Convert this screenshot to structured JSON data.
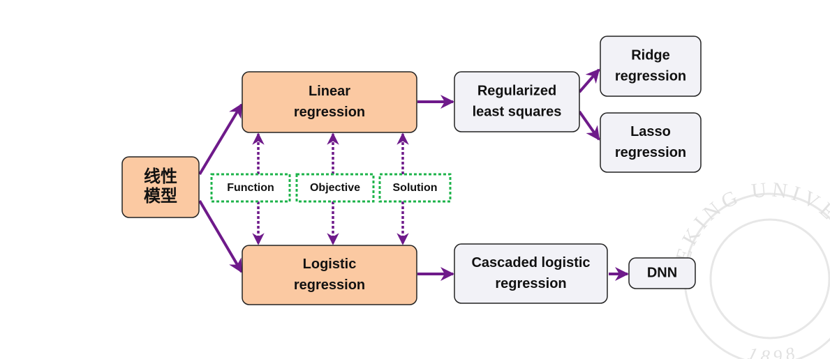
{
  "nodes": [
    {
      "label": [
        "线性",
        "模型"
      ]
    },
    {
      "label": [
        "Linear",
        "regression"
      ]
    },
    {
      "label": [
        "Logistic",
        "regression"
      ]
    },
    {
      "label": [
        "Regularized",
        "least squares"
      ]
    },
    {
      "label": [
        "Ridge",
        "regression"
      ]
    },
    {
      "label": [
        "Lasso",
        "regression"
      ]
    },
    {
      "label": [
        "Cascaded logistic",
        "regression"
      ]
    },
    {
      "label": [
        "DNN"
      ]
    }
  ],
  "links": [
    "Function",
    "Objective",
    "Solution"
  ],
  "watermark": {
    "arc_text": "PEKING UNIVERSITY",
    "year": "1 8 9 8"
  }
}
